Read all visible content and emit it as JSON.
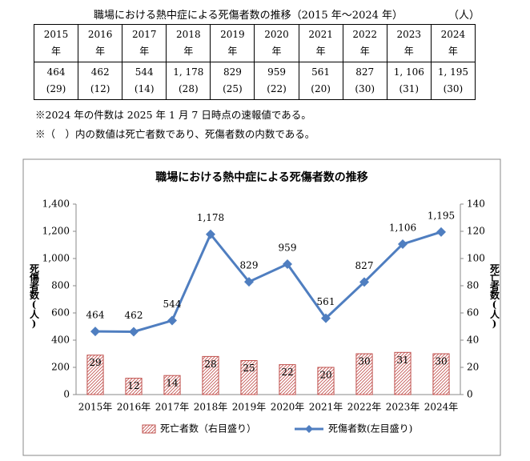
{
  "table": {
    "title": "職場における熱中症による死傷者数の推移（2015 年～2024 年）",
    "unit": "（人）",
    "header": [
      [
        "2015",
        "年"
      ],
      [
        "2016",
        "年"
      ],
      [
        "2017",
        "年"
      ],
      [
        "2018",
        "年"
      ],
      [
        "2019",
        "年"
      ],
      [
        "2020",
        "年"
      ],
      [
        "2021",
        "年"
      ],
      [
        "2022",
        "年"
      ],
      [
        "2023",
        "年"
      ],
      [
        "2024",
        "年"
      ]
    ],
    "casualties": [
      "464",
      "462",
      "544",
      "1, 178",
      "829",
      "959",
      "561",
      "827",
      "1, 106",
      "1, 195"
    ],
    "deaths": [
      "(29)",
      "(12)",
      "(14)",
      "(28)",
      "(25)",
      "(22)",
      "(20)",
      "(30)",
      "(31)",
      "(30)"
    ]
  },
  "notes": [
    "※2024 年の件数は 2025 年 1 月 7 日時点の速報値である。",
    "※（　）内の数値は死亡者数であり、死傷者数の内数である。"
  ],
  "chart_data": {
    "type": "bar-line",
    "title": "職場における熱中症による死傷者数の推移",
    "categories": [
      "2015年",
      "2016年",
      "2017年",
      "2018年",
      "2019年",
      "2020年",
      "2021年",
      "2022年",
      "2023年",
      "2024年"
    ],
    "series": [
      {
        "name": "死亡者数（右目盛り）",
        "type": "bar",
        "axis": "y2",
        "color": "#c0504d",
        "values": [
          29,
          12,
          14,
          28,
          25,
          22,
          20,
          30,
          31,
          30
        ]
      },
      {
        "name": "死傷者数(左目盛り)",
        "type": "line",
        "color": "#4f7ec0",
        "values": [
          464,
          462,
          544,
          1178,
          829,
          959,
          561,
          827,
          1106,
          1195
        ],
        "value_labels": [
          "464",
          "462",
          "544",
          "1,178",
          "829",
          "959",
          "561",
          "827",
          "1,106",
          "1,195"
        ]
      }
    ],
    "y_label": "死傷者数(人)",
    "y2_label": "死亡者数(人)",
    "ylim": [
      0,
      1400
    ],
    "yticks": [
      0,
      200,
      400,
      600,
      800,
      {
        "value": 1000,
        "label": "1,000"
      },
      {
        "value": 1200,
        "label": "1,200"
      },
      {
        "value": 1400,
        "label": "1,400"
      }
    ],
    "y2lim": [
      0,
      140
    ],
    "y2ticks": [
      0,
      20,
      40,
      60,
      80,
      100,
      120,
      140
    ],
    "grid": false,
    "legend": "bottom"
  }
}
